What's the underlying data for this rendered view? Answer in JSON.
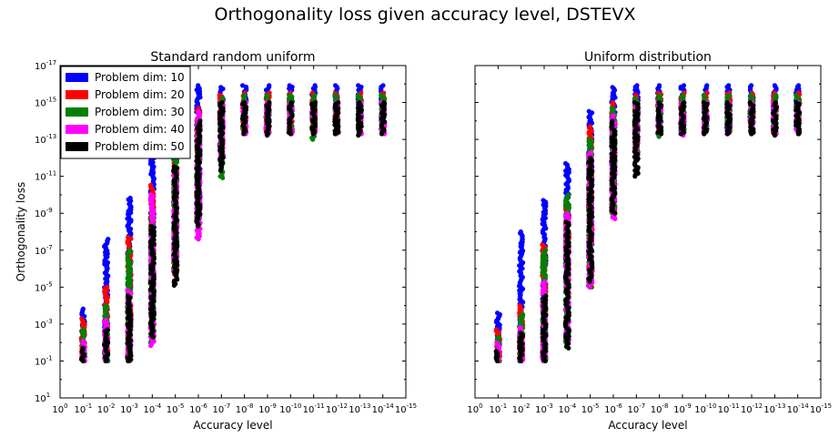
{
  "figure": {
    "title": "Orthogonality loss given accuracy level, DSTEVX"
  },
  "chart_data": [
    {
      "type": "scatter",
      "title": "Standard random uniform",
      "xlabel": "Accuracy level",
      "ylabel": "Orthogonality loss",
      "x_scale": "log-reversed",
      "y_scale": "log-reversed",
      "xlim": [
        1,
        1e-15
      ],
      "ylim": [
        10,
        1e-17
      ],
      "grid": false,
      "legend": "top-left",
      "x_tick_labels": [
        "0",
        "-1",
        "-2",
        "-3",
        "-4",
        "-5",
        "-6",
        "-7",
        "-8",
        "-9",
        "-10",
        "-11",
        "-12",
        "-13",
        "-14",
        "-15"
      ],
      "y_tick_labels": [
        "-17",
        "-15",
        "-13",
        "-11",
        "-9",
        "-7",
        "-5",
        "-3",
        "-1",
        "1"
      ],
      "x_tick_base": "10",
      "y_tick_base": "10",
      "series": [
        {
          "name": "Problem dim: 10",
          "color": "#0000ff",
          "ranges": [
            {
              "x": 0.1,
              "ymax": 0.1,
              "ymin": 0.00015
            },
            {
              "x": 0.01,
              "ymax": 0.1,
              "ymin": 2.5e-08
            },
            {
              "x": 0.001,
              "ymax": 0.1,
              "ymin": 1.5e-10
            },
            {
              "x": 0.0001,
              "ymax": 0.0003,
              "ymin": 1e-12
            },
            {
              "x": 1e-05,
              "ymax": 2e-06,
              "ymin": 4e-13
            },
            {
              "x": 1e-06,
              "ymax": 2e-09,
              "ymin": 1.2e-16
            },
            {
              "x": 1e-07,
              "ymax": 1e-12,
              "ymin": 1.5e-16
            },
            {
              "x": 1e-08,
              "ymax": 4e-14,
              "ymin": 1.2e-16
            },
            {
              "x": 1e-09,
              "ymax": 4e-14,
              "ymin": 1.2e-16
            },
            {
              "x": 1e-10,
              "ymax": 4e-14,
              "ymin": 1.2e-16
            },
            {
              "x": 1e-11,
              "ymax": 4e-14,
              "ymin": 1.2e-16
            },
            {
              "x": 1e-12,
              "ymax": 4e-14,
              "ymin": 1.2e-16
            },
            {
              "x": 1e-13,
              "ymax": 4e-14,
              "ymin": 1.2e-16
            },
            {
              "x": 1e-14,
              "ymax": 4e-14,
              "ymin": 1.2e-16
            }
          ]
        },
        {
          "name": "Problem dim: 20",
          "color": "#ff0000",
          "ranges": [
            {
              "x": 0.1,
              "ymax": 0.1,
              "ymin": 0.0005
            },
            {
              "x": 0.01,
              "ymax": 0.1,
              "ymin": 1e-05
            },
            {
              "x": 0.001,
              "ymax": 0.1,
              "ymin": 2e-08
            },
            {
              "x": 0.0001,
              "ymax": 0.0003,
              "ymin": 3e-11
            },
            {
              "x": 1e-05,
              "ymax": 2e-06,
              "ymin": 1e-13
            },
            {
              "x": 1e-06,
              "ymax": 2e-09,
              "ymin": 2e-15
            },
            {
              "x": 1e-07,
              "ymax": 1e-12,
              "ymin": 4e-16
            },
            {
              "x": 1e-08,
              "ymax": 4e-14,
              "ymin": 3e-16
            },
            {
              "x": 1e-09,
              "ymax": 4e-14,
              "ymin": 3e-16
            },
            {
              "x": 1e-10,
              "ymax": 4e-14,
              "ymin": 3e-16
            },
            {
              "x": 1e-11,
              "ymax": 4e-14,
              "ymin": 3e-16
            },
            {
              "x": 1e-12,
              "ymax": 4e-14,
              "ymin": 3e-16
            },
            {
              "x": 1e-13,
              "ymax": 4e-14,
              "ymin": 3e-16
            },
            {
              "x": 1e-14,
              "ymax": 4e-14,
              "ymin": 3e-16
            }
          ]
        },
        {
          "name": "Problem dim: 30",
          "color": "#008000",
          "ranges": [
            {
              "x": 0.1,
              "ymax": 0.1,
              "ymin": 0.002
            },
            {
              "x": 0.01,
              "ymax": 0.1,
              "ymin": 0.0001
            },
            {
              "x": 0.001,
              "ymax": 0.1,
              "ymin": 1e-07
            },
            {
              "x": 0.0001,
              "ymax": 0.01,
              "ymin": 1e-09
            },
            {
              "x": 1e-05,
              "ymax": 2e-06,
              "ymin": 1e-12
            },
            {
              "x": 1e-06,
              "ymax": 2e-09,
              "ymin": 1e-14
            },
            {
              "x": 1e-07,
              "ymax": 1.2e-11,
              "ymin": 6e-16
            },
            {
              "x": 1e-08,
              "ymax": 4e-14,
              "ymin": 4e-16
            },
            {
              "x": 1e-09,
              "ymax": 4e-14,
              "ymin": 4e-16
            },
            {
              "x": 1e-10,
              "ymax": 4e-14,
              "ymin": 4e-16
            },
            {
              "x": 1e-11,
              "ymax": 1e-13,
              "ymin": 4e-16
            },
            {
              "x": 1e-12,
              "ymax": 4e-14,
              "ymin": 4e-16
            },
            {
              "x": 1e-13,
              "ymax": 4e-14,
              "ymin": 4e-16
            },
            {
              "x": 1e-14,
              "ymax": 4e-14,
              "ymin": 4e-16
            }
          ]
        },
        {
          "name": "Problem dim: 40",
          "color": "#ff00ff",
          "ranges": [
            {
              "x": 0.1,
              "ymax": 0.1,
              "ymin": 0.008
            },
            {
              "x": 0.01,
              "ymax": 0.1,
              "ymin": 0.0006
            },
            {
              "x": 0.001,
              "ymax": 0.1,
              "ymin": 1.5e-05
            },
            {
              "x": 0.0001,
              "ymax": 0.015,
              "ymin": 1e-10
            },
            {
              "x": 1e-05,
              "ymax": 2e-06,
              "ymin": 5e-12
            },
            {
              "x": 1e-06,
              "ymax": 2.5e-08,
              "ymin": 3e-15
            },
            {
              "x": 1e-07,
              "ymax": 1e-12,
              "ymin": 1e-15
            },
            {
              "x": 1e-08,
              "ymax": 5e-14,
              "ymin": 1e-15
            },
            {
              "x": 1e-09,
              "ymax": 5e-14,
              "ymin": 1e-15
            },
            {
              "x": 1e-10,
              "ymax": 5e-14,
              "ymin": 1e-15
            },
            {
              "x": 1e-11,
              "ymax": 5e-14,
              "ymin": 1e-15
            },
            {
              "x": 1e-12,
              "ymax": 5e-14,
              "ymin": 1e-15
            },
            {
              "x": 1e-13,
              "ymax": 5e-14,
              "ymin": 1e-15
            },
            {
              "x": 1e-14,
              "ymax": 5e-14,
              "ymin": 1e-15
            }
          ]
        },
        {
          "name": "Problem dim: 50",
          "color": "#000000",
          "ranges": [
            {
              "x": 0.1,
              "ymax": 0.1,
              "ymin": 0.02
            },
            {
              "x": 0.01,
              "ymax": 0.1,
              "ymin": 0.002
            },
            {
              "x": 0.001,
              "ymax": 0.1,
              "ymin": 3e-05
            },
            {
              "x": 0.0001,
              "ymax": 0.005,
              "ymin": 5e-09
            },
            {
              "x": 1e-05,
              "ymax": 8e-06,
              "ymin": 3e-12
            },
            {
              "x": 1e-06,
              "ymax": 5e-09,
              "ymin": 1e-14
            },
            {
              "x": 1e-07,
              "ymax": 5e-12,
              "ymin": 1e-15
            },
            {
              "x": 1e-08,
              "ymax": 5e-14,
              "ymin": 1e-15
            },
            {
              "x": 1e-09,
              "ymax": 6e-14,
              "ymin": 1e-15
            },
            {
              "x": 1e-10,
              "ymax": 5e-14,
              "ymin": 1e-15
            },
            {
              "x": 1e-11,
              "ymax": 5e-14,
              "ymin": 1e-15
            },
            {
              "x": 1e-12,
              "ymax": 5e-14,
              "ymin": 1e-15
            },
            {
              "x": 1e-13,
              "ymax": 6e-14,
              "ymin": 1e-15
            },
            {
              "x": 1e-14,
              "ymax": 5e-14,
              "ymin": 1e-15
            }
          ]
        }
      ]
    },
    {
      "type": "scatter",
      "title": "Uniform distribution",
      "xlabel": "Accuracy level",
      "ylabel": "",
      "x_scale": "log-reversed",
      "y_scale": "log-reversed",
      "xlim": [
        1,
        1e-15
      ],
      "ylim": [
        10,
        1e-17
      ],
      "grid": false,
      "legend": "none",
      "x_tick_labels": [
        "0",
        "-1",
        "-2",
        "-3",
        "-4",
        "-5",
        "-6",
        "-7",
        "-8",
        "-9",
        "-10",
        "-11",
        "-12",
        "-13",
        "-14",
        "-15"
      ],
      "x_tick_base": "10",
      "series": [
        {
          "name": "Problem dim: 10",
          "color": "#0000ff",
          "ranges": [
            {
              "x": 0.1,
              "ymax": 0.1,
              "ymin": 0.00025
            },
            {
              "x": 0.01,
              "ymax": 0.1,
              "ymin": 1e-08
            },
            {
              "x": 0.001,
              "ymax": 0.1,
              "ymin": 2e-10
            },
            {
              "x": 0.0001,
              "ymax": 1e-05,
              "ymin": 2e-12
            },
            {
              "x": 1e-05,
              "ymax": 2e-06,
              "ymin": 3e-15
            },
            {
              "x": 1e-06,
              "ymax": 1e-09,
              "ymin": 1.5e-16
            },
            {
              "x": 1e-07,
              "ymax": 1e-12,
              "ymin": 1.2e-16
            },
            {
              "x": 1e-08,
              "ymax": 4e-14,
              "ymin": 1.2e-16
            },
            {
              "x": 1e-09,
              "ymax": 4e-14,
              "ymin": 1.2e-16
            },
            {
              "x": 1e-10,
              "ymax": 4e-14,
              "ymin": 1.2e-16
            },
            {
              "x": 1e-11,
              "ymax": 4e-14,
              "ymin": 1.2e-16
            },
            {
              "x": 1e-12,
              "ymax": 4e-14,
              "ymin": 1.2e-16
            },
            {
              "x": 1e-13,
              "ymax": 4e-14,
              "ymin": 1.2e-16
            },
            {
              "x": 1e-14,
              "ymax": 4e-14,
              "ymin": 1.2e-16
            }
          ]
        },
        {
          "name": "Problem dim: 20",
          "color": "#ff0000",
          "ranges": [
            {
              "x": 0.1,
              "ymax": 0.1,
              "ymin": 0.002
            },
            {
              "x": 0.01,
              "ymax": 0.1,
              "ymin": 0.0001
            },
            {
              "x": 0.001,
              "ymax": 0.1,
              "ymin": 5e-08
            },
            {
              "x": 0.0001,
              "ymax": 3e-05,
              "ymin": 2e-10
            },
            {
              "x": 1e-05,
              "ymax": 1e-05,
              "ymin": 2e-14
            },
            {
              "x": 1e-06,
              "ymax": 1e-09,
              "ymin": 1e-15
            },
            {
              "x": 1e-07,
              "ymax": 1e-12,
              "ymin": 4e-16
            },
            {
              "x": 1e-08,
              "ymax": 4e-14,
              "ymin": 3e-16
            },
            {
              "x": 1e-09,
              "ymax": 4e-14,
              "ymin": 3e-16
            },
            {
              "x": 1e-10,
              "ymax": 4e-14,
              "ymin": 3e-16
            },
            {
              "x": 1e-11,
              "ymax": 4e-14,
              "ymin": 3e-16
            },
            {
              "x": 1e-12,
              "ymax": 4e-14,
              "ymin": 3e-16
            },
            {
              "x": 1e-13,
              "ymax": 4e-14,
              "ymin": 3e-16
            },
            {
              "x": 1e-14,
              "ymax": 4e-14,
              "ymin": 3e-16
            }
          ]
        },
        {
          "name": "Problem dim: 30",
          "color": "#008000",
          "ranges": [
            {
              "x": 0.1,
              "ymax": 0.1,
              "ymin": 0.005
            },
            {
              "x": 0.01,
              "ymax": 0.1,
              "ymin": 0.0003
            },
            {
              "x": 0.001,
              "ymax": 0.1,
              "ymin": 1e-07
            },
            {
              "x": 0.0001,
              "ymax": 0.01,
              "ymin": 1e-10
            },
            {
              "x": 1e-05,
              "ymax": 1e-05,
              "ymin": 1e-13
            },
            {
              "x": 1e-06,
              "ymax": 1e-09,
              "ymin": 2e-15
            },
            {
              "x": 1e-07,
              "ymax": 1e-12,
              "ymin": 6e-16
            },
            {
              "x": 1e-08,
              "ymax": 7e-14,
              "ymin": 4e-16
            },
            {
              "x": 1e-09,
              "ymax": 4e-14,
              "ymin": 4e-16
            },
            {
              "x": 1e-10,
              "ymax": 4e-14,
              "ymin": 4e-16
            },
            {
              "x": 1e-11,
              "ymax": 4e-14,
              "ymin": 4e-16
            },
            {
              "x": 1e-12,
              "ymax": 4e-14,
              "ymin": 4e-16
            },
            {
              "x": 1e-13,
              "ymax": 4e-14,
              "ymin": 4e-16
            },
            {
              "x": 1e-14,
              "ymax": 4e-14,
              "ymin": 4e-16
            }
          ]
        },
        {
          "name": "Problem dim: 40",
          "color": "#ff00ff",
          "ranges": [
            {
              "x": 0.1,
              "ymax": 0.1,
              "ymin": 0.01
            },
            {
              "x": 0.01,
              "ymax": 0.1,
              "ymin": 0.0015
            },
            {
              "x": 0.001,
              "ymax": 0.1,
              "ymin": 5e-06
            },
            {
              "x": 0.0001,
              "ymax": 0.01,
              "ymin": 1e-09
            },
            {
              "x": 1e-05,
              "ymax": 1e-05,
              "ymin": 5e-13
            },
            {
              "x": 1e-06,
              "ymax": 2e-09,
              "ymin": 5e-15
            },
            {
              "x": 1e-07,
              "ymax": 1e-12,
              "ymin": 1e-15
            },
            {
              "x": 1e-08,
              "ymax": 5e-14,
              "ymin": 1e-15
            },
            {
              "x": 1e-09,
              "ymax": 6e-14,
              "ymin": 1e-15
            },
            {
              "x": 1e-10,
              "ymax": 5e-14,
              "ymin": 1e-15
            },
            {
              "x": 1e-11,
              "ymax": 5e-14,
              "ymin": 1e-15
            },
            {
              "x": 1e-12,
              "ymax": 5e-14,
              "ymin": 1e-15
            },
            {
              "x": 1e-13,
              "ymax": 5e-14,
              "ymin": 1e-15
            },
            {
              "x": 1e-14,
              "ymax": 5e-14,
              "ymin": 1e-15
            }
          ]
        },
        {
          "name": "Problem dim: 50",
          "color": "#000000",
          "ranges": [
            {
              "x": 0.1,
              "ymax": 0.1,
              "ymin": 0.03
            },
            {
              "x": 0.01,
              "ymax": 0.1,
              "ymin": 0.003
            },
            {
              "x": 0.001,
              "ymax": 0.1,
              "ymin": 3e-05
            },
            {
              "x": 0.0001,
              "ymax": 0.02,
              "ymin": 3e-09
            },
            {
              "x": 1e-05,
              "ymax": 5e-06,
              "ymin": 1e-12
            },
            {
              "x": 1e-06,
              "ymax": 1e-09,
              "ymin": 1e-14
            },
            {
              "x": 1e-07,
              "ymax": 1e-11,
              "ymin": 1e-15
            },
            {
              "x": 1e-08,
              "ymax": 5e-14,
              "ymin": 1e-15
            },
            {
              "x": 1e-09,
              "ymax": 5e-14,
              "ymin": 1e-15
            },
            {
              "x": 1e-10,
              "ymax": 5e-14,
              "ymin": 1e-15
            },
            {
              "x": 1e-11,
              "ymax": 5e-14,
              "ymin": 1e-15
            },
            {
              "x": 1e-12,
              "ymax": 5e-14,
              "ymin": 1e-15
            },
            {
              "x": 1e-13,
              "ymax": 6e-14,
              "ymin": 1e-15
            },
            {
              "x": 1e-14,
              "ymax": 5e-14,
              "ymin": 1e-15
            }
          ]
        }
      ]
    }
  ]
}
